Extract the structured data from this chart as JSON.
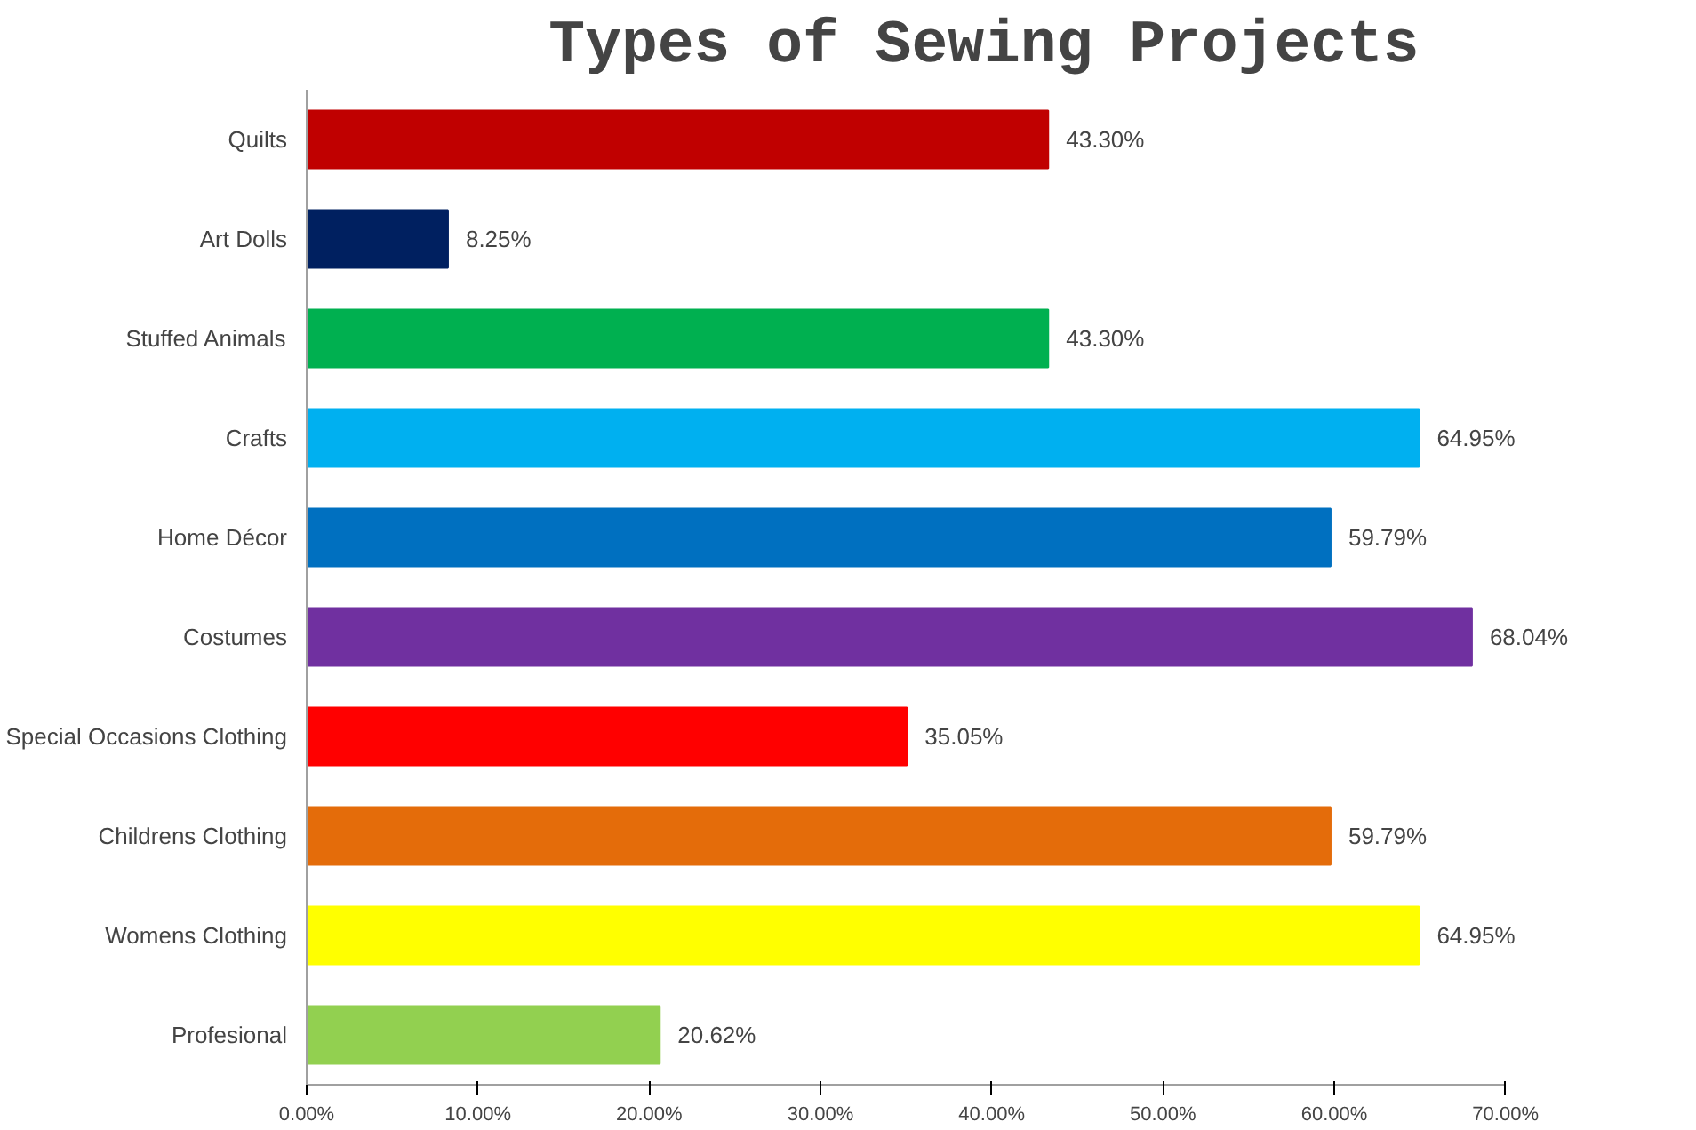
{
  "chart_data": {
    "type": "bar",
    "orientation": "horizontal",
    "title": "Types of Sewing Projects",
    "categories": [
      "Quilts",
      "Art Dolls",
      "Stuffed Animals",
      "Crafts",
      "Home Décor",
      "Costumes",
      "Special Occasions Clothing",
      "Childrens Clothing",
      "Womens Clothing",
      "Profesional"
    ],
    "values": [
      43.3,
      8.25,
      43.3,
      64.95,
      59.79,
      68.04,
      35.05,
      59.79,
      64.95,
      20.62
    ],
    "colors": [
      "#c00000",
      "#002060",
      "#00b050",
      "#00b0f0",
      "#0070c0",
      "#7030a0",
      "#ff0000",
      "#e46c0a",
      "#ffff00",
      "#92d050"
    ],
    "value_labels": [
      "43.30%",
      "8.25%",
      "43.30%",
      "64.95%",
      "59.79%",
      "68.04%",
      "35.05%",
      "59.79%",
      "64.95%",
      "20.62%"
    ],
    "xlim": [
      0,
      70
    ],
    "xticks": [
      {
        "value": 0,
        "label": "0.00%"
      },
      {
        "value": 10,
        "label": "10.00%"
      },
      {
        "value": 20,
        "label": "20.00%"
      },
      {
        "value": 30,
        "label": "30.00%"
      },
      {
        "value": 40,
        "label": "40.00%"
      },
      {
        "value": 50,
        "label": "50.00%"
      },
      {
        "value": 60,
        "label": "60.00%"
      },
      {
        "value": 70,
        "label": "70.00%"
      }
    ],
    "grid": false
  }
}
